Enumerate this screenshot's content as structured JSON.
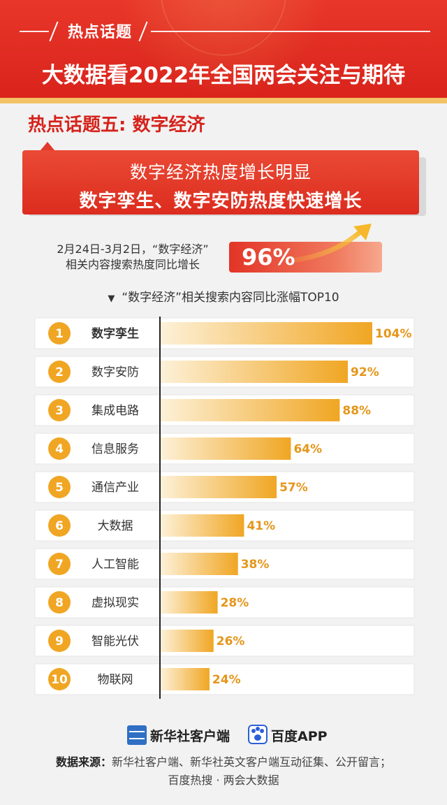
{
  "header": {
    "topic_label": "热点话题",
    "main_title": "大数据看2022年全国两会关注与期待"
  },
  "section": {
    "title": "热点话题五: 数字经济"
  },
  "callout": {
    "line1": "数字经济热度增长明显",
    "line2": "数字孪生、数字安防热度快速增长"
  },
  "growth": {
    "description_line1": "2月24日-3月2日，“数字经济”",
    "description_line2": "相关内容搜索热度同比增长",
    "value": "96%"
  },
  "chart_caption": "“数字经济”相关搜索内容同比涨幅TOP10",
  "chart_data": {
    "type": "bar",
    "orientation": "horizontal",
    "title": "“数字经济”相关搜索内容同比涨幅TOP10",
    "ranks": [
      "1",
      "2",
      "3",
      "4",
      "5",
      "6",
      "7",
      "8",
      "9",
      "10"
    ],
    "categories": [
      "数字孪生",
      "数字安防",
      "集成电路",
      "信息服务",
      "通信产业",
      "大数据",
      "人工智能",
      "虚拟现实",
      "智能光伏",
      "物联网"
    ],
    "values": [
      104,
      92,
      88,
      64,
      57,
      41,
      38,
      28,
      26,
      24
    ],
    "value_labels": [
      "104%",
      "92%",
      "88%",
      "64%",
      "57%",
      "41%",
      "38%",
      "28%",
      "26%",
      "24%"
    ],
    "unit": "%",
    "xlim": [
      0,
      110
    ],
    "colors": {
      "bar_start": "#fdf1d8",
      "bar_end": "#f0a623",
      "rank_circle": "#f0a623",
      "value_text": "#e5961a"
    }
  },
  "logos": {
    "xinhua_icon": "xinhua-logo-icon",
    "xinhua_text": "新华社客户端",
    "baidu_icon": "baidu-paw-icon",
    "baidu_text": "百度APP"
  },
  "source": {
    "label": "数据来源：",
    "line1": "新华社客户端、新华社英文客户端互动征集、公开留言；",
    "line2": "百度热搜 · 两会大数据"
  },
  "colors": {
    "brand_red": "#d9231b",
    "gold": "#f3c266",
    "accent_orange": "#f0a623"
  }
}
